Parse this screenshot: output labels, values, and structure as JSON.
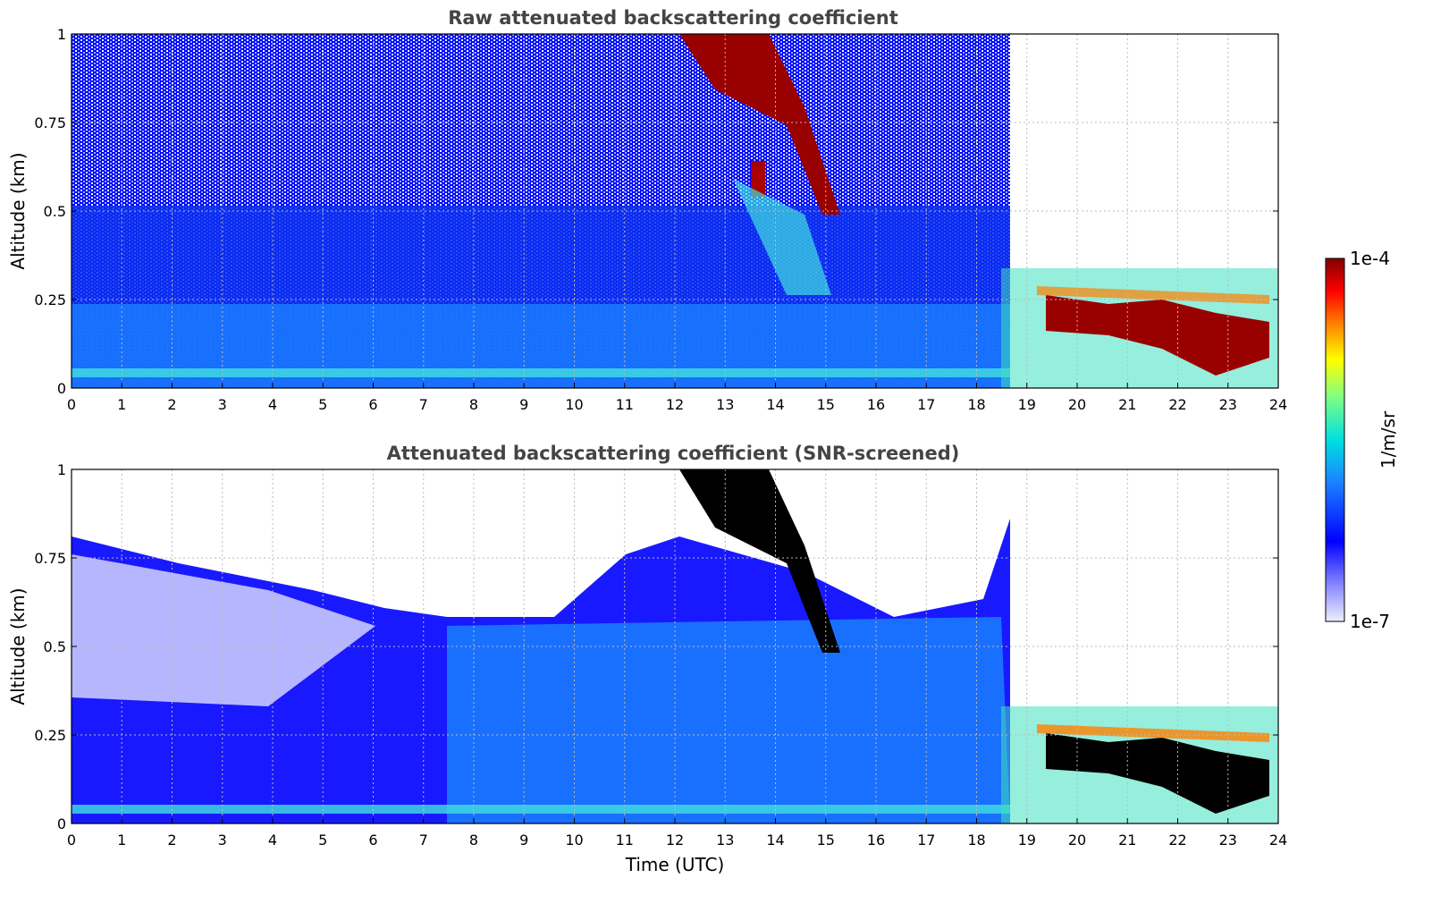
{
  "chart_data": [
    {
      "type": "heatmap",
      "title": "Raw attenuated backscattering coefficient",
      "xlabel": "",
      "ylabel": "Altitude (km)",
      "xlim": [
        0,
        24
      ],
      "ylim": [
        0,
        1
      ],
      "xticks": [
        "0",
        "1",
        "2",
        "3",
        "4",
        "5",
        "6",
        "7",
        "8",
        "9",
        "10",
        "11",
        "12",
        "13",
        "14",
        "15",
        "16",
        "17",
        "18",
        "19",
        "20",
        "21",
        "22",
        "23",
        "24"
      ],
      "yticks": [
        "0",
        "0.25",
        "0.5",
        "0.75",
        "1"
      ],
      "ytick_values": [
        0,
        0.25,
        0.5,
        0.75,
        1
      ],
      "grid": true,
      "screened": false
    },
    {
      "type": "heatmap",
      "title": "Attenuated backscattering coefficient (SNR-screened)",
      "xlabel": "Time (UTC)",
      "ylabel": "Altitude (km)",
      "xlim": [
        0,
        24
      ],
      "ylim": [
        0,
        1
      ],
      "xticks": [
        "0",
        "1",
        "2",
        "3",
        "4",
        "5",
        "6",
        "7",
        "8",
        "9",
        "10",
        "11",
        "12",
        "13",
        "14",
        "15",
        "16",
        "17",
        "18",
        "19",
        "20",
        "21",
        "22",
        "23",
        "24"
      ],
      "yticks": [
        "0",
        "0.25",
        "0.5",
        "0.75",
        "1"
      ],
      "ytick_values": [
        0,
        0.25,
        0.5,
        0.75,
        1
      ],
      "grid": true,
      "screened": true
    }
  ],
  "colorbar": {
    "max_label": "1e-4",
    "min_label": "1e-7",
    "label": "1/m/sr",
    "scale": "log",
    "colors": [
      "#eeeeff",
      "#8888ff",
      "#0000ff",
      "#1a80ff",
      "#00e0e0",
      "#80ff80",
      "#ffff00",
      "#ff8000",
      "#ff0000",
      "#800000"
    ]
  }
}
